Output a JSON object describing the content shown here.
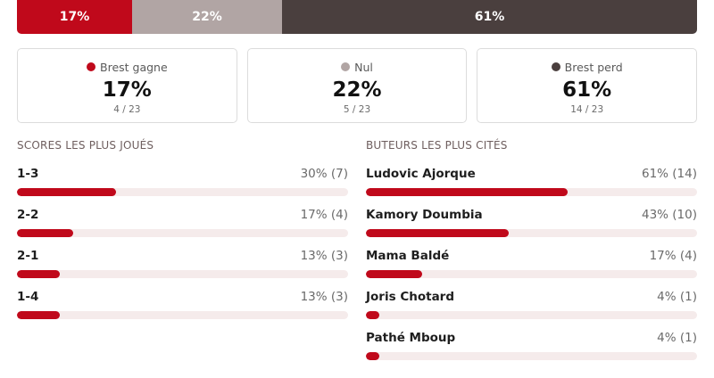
{
  "colors": {
    "win": "#c0091b",
    "draw": "#b1a5a4",
    "lose": "#4a3f3e",
    "bar_fill": "#c0091b",
    "bar_track": "#f5ebeb"
  },
  "distribution": {
    "win_label": "17%",
    "draw_label": "22%",
    "lose_label": "61%",
    "win_fraction": 0.17,
    "draw_fraction": 0.22,
    "lose_fraction": 0.61
  },
  "cards": [
    {
      "label": "Brest gagne",
      "pct": "17%",
      "frac": "4 / 23"
    },
    {
      "label": "Nul",
      "pct": "22%",
      "frac": "5 / 23"
    },
    {
      "label": "Brest perd",
      "pct": "61%",
      "frac": "14 / 23"
    }
  ],
  "scores": {
    "title": "SCORES LES PLUS JOUÉS",
    "items": [
      {
        "label": "1-3",
        "value": "30% (7)",
        "fraction": 0.3
      },
      {
        "label": "2-2",
        "value": "17% (4)",
        "fraction": 0.17
      },
      {
        "label": "2-1",
        "value": "13% (3)",
        "fraction": 0.13
      },
      {
        "label": "1-4",
        "value": "13% (3)",
        "fraction": 0.13
      }
    ]
  },
  "scorers": {
    "title": "BUTEURS LES PLUS CITÉS",
    "items": [
      {
        "label": "Ludovic Ajorque",
        "value": "61% (14)",
        "fraction": 0.61
      },
      {
        "label": "Kamory Doumbia",
        "value": "43% (10)",
        "fraction": 0.43
      },
      {
        "label": "Mama Baldé",
        "value": "17% (4)",
        "fraction": 0.17
      },
      {
        "label": "Joris Chotard",
        "value": "4% (1)",
        "fraction": 0.04
      },
      {
        "label": "Pathé Mboup",
        "value": "4% (1)",
        "fraction": 0.04
      }
    ]
  }
}
